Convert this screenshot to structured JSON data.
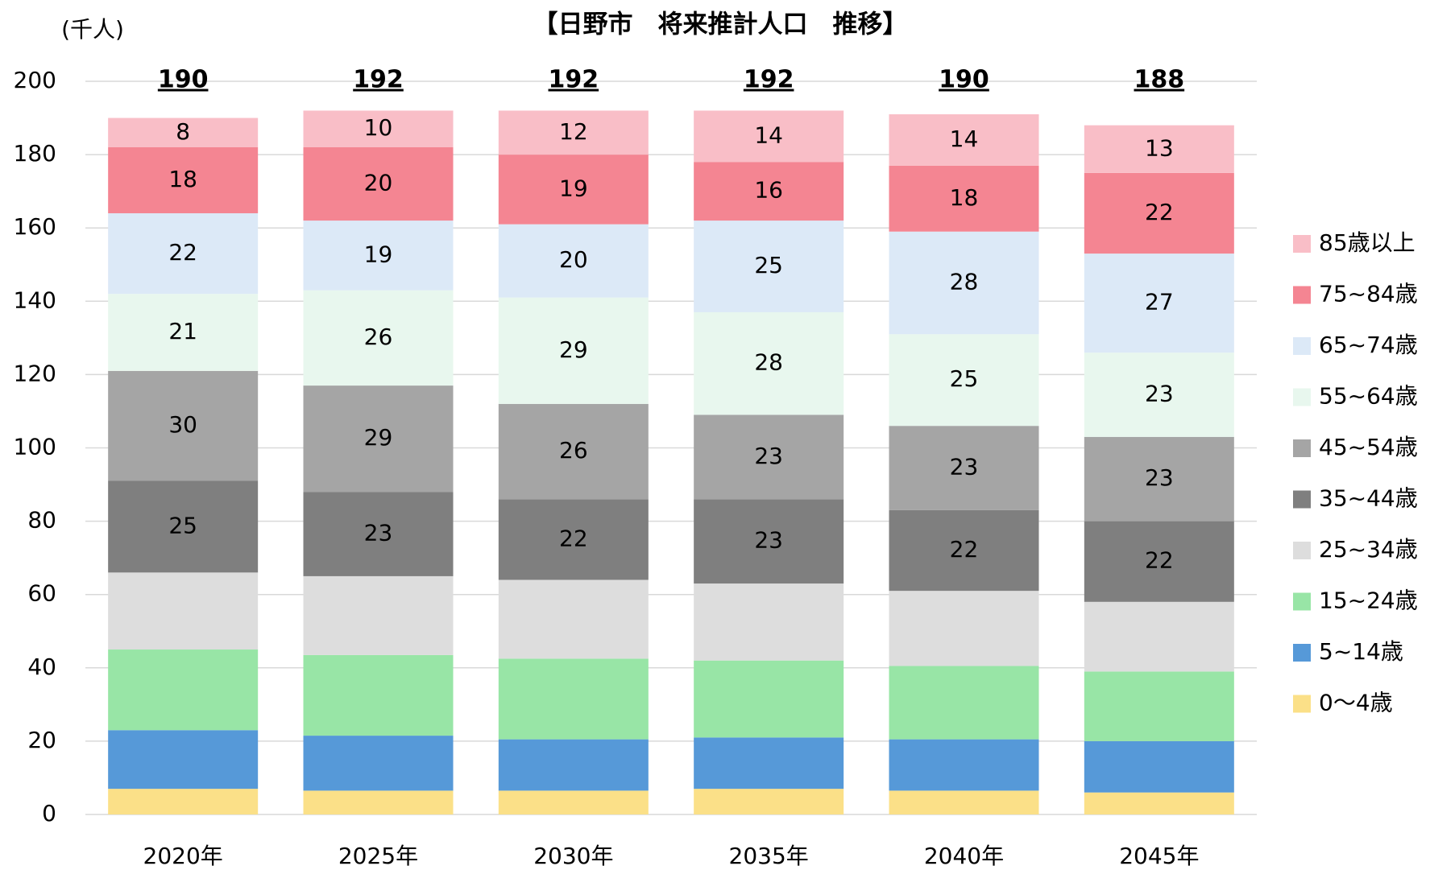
{
  "chart_data": {
    "type": "stacked_bar",
    "title": "【日野市　将来推計人口　推移】",
    "y_unit_label": "(千人)",
    "categories": [
      "2020年",
      "2025年",
      "2030年",
      "2035年",
      "2040年",
      "2045年"
    ],
    "totals": [
      190,
      192,
      192,
      192,
      190,
      188
    ],
    "ylim": [
      0,
      200
    ],
    "yticks": [
      0,
      20,
      40,
      60,
      80,
      100,
      120,
      140,
      160,
      180,
      200
    ],
    "grid": true,
    "series": [
      {
        "name": "0～4歳",
        "color": "#fbe088",
        "values": [
          7,
          6.5,
          6.5,
          7,
          6.5,
          6
        ],
        "show_labels": false
      },
      {
        "name": "5~14歳",
        "color": "#5699d8",
        "values": [
          16,
          15,
          14,
          14,
          14,
          14
        ],
        "show_labels": false
      },
      {
        "name": "15~24歳",
        "color": "#98e5a6",
        "values": [
          22,
          22,
          22,
          21,
          20,
          19
        ],
        "show_labels": false
      },
      {
        "name": "25~34歳",
        "color": "#dddddd",
        "values": [
          21,
          21.5,
          21.5,
          21,
          20.5,
          19
        ],
        "show_labels": false
      },
      {
        "name": "35~44歳",
        "color": "#7f7f7f",
        "values": [
          25,
          23,
          22,
          23,
          22,
          22
        ],
        "show_labels": true
      },
      {
        "name": "45~54歳",
        "color": "#a5a5a5",
        "values": [
          30,
          29,
          26,
          23,
          23,
          23
        ],
        "show_labels": true
      },
      {
        "name": "55~64歳",
        "color": "#e8f7ee",
        "values": [
          21,
          26,
          29,
          28,
          25,
          23
        ],
        "show_labels": true
      },
      {
        "name": "65~74歳",
        "color": "#dce9f7",
        "values": [
          22,
          19,
          20,
          25,
          28,
          27
        ],
        "show_labels": true
      },
      {
        "name": "75~84歳",
        "color": "#f48592",
        "values": [
          18,
          20,
          19,
          16,
          18,
          22
        ],
        "show_labels": true
      },
      {
        "name": "85歳以上",
        "color": "#f9bec7",
        "values": [
          8,
          10,
          12,
          14,
          14,
          13
        ],
        "show_labels": true
      }
    ]
  }
}
